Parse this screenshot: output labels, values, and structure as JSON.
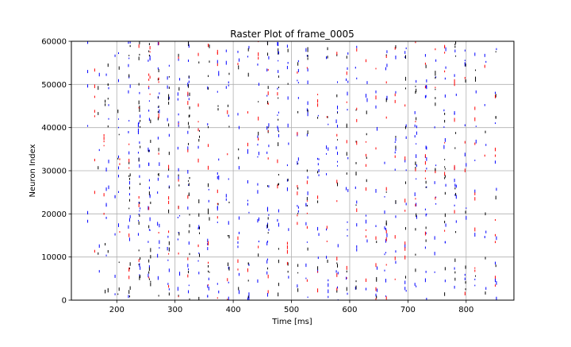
{
  "chart_data": {
    "type": "scatter",
    "style": "raster",
    "title": "Raster Plot of frame_0005",
    "xlabel": "Time [ms]",
    "ylabel": "Neuron Index",
    "xlim": [
      122,
      882
    ],
    "ylim": [
      0,
      60000
    ],
    "x_ticks": [
      200,
      300,
      400,
      500,
      600,
      700,
      800
    ],
    "y_ticks": [
      0,
      10000,
      20000,
      30000,
      40000,
      50000,
      60000
    ],
    "grid": true,
    "legend": "none",
    "series": [
      {
        "color": "#0000ff",
        "x": [
          150,
          170,
          182,
          186,
          197,
          203,
          203,
          220,
          221,
          222,
          223,
          237,
          238,
          239,
          240,
          254,
          255,
          256,
          257,
          270,
          271,
          273,
          287,
          288,
          290,
          305,
          306,
          308,
          322,
          323,
          324,
          340,
          341,
          356,
          358,
          373,
          375,
          388,
          392,
          408,
          410,
          425,
          427,
          442,
          444,
          458,
          459,
          461,
          476,
          477,
          478,
          493,
          494,
          495,
          510,
          512,
          525,
          527,
          528,
          545,
          546,
          547,
          560,
          563,
          577,
          579,
          580,
          594,
          596,
          597,
          610,
          612,
          628,
          630,
          645,
          647,
          660,
          662,
          664,
          678,
          679,
          695,
          697,
          712,
          714,
          715,
          730,
          731,
          732,
          746,
          748,
          762,
          764,
          765,
          780,
          781,
          783,
          798,
          800,
          815,
          817,
          832,
          834,
          850,
          852
        ]
      },
      {
        "color": "#000000",
        "x": [
          168,
          180,
          185,
          202,
          204,
          221,
          222,
          223,
          238,
          239,
          240,
          255,
          256,
          258,
          271,
          272,
          289,
          290,
          306,
          307,
          323,
          324,
          325,
          341,
          342,
          357,
          359,
          374,
          391,
          393,
          409,
          426,
          443,
          459,
          460,
          477,
          478,
          494,
          511,
          527,
          528,
          545,
          562,
          578,
          579,
          595,
          611,
          629,
          646,
          663,
          679,
          696,
          713,
          714,
          731,
          747,
          763,
          764,
          781,
          782,
          799,
          816,
          833,
          851
        ]
      },
      {
        "color": "#ff0000",
        "x": [
          162,
          178,
          205,
          221,
          238,
          255,
          257,
          272,
          289,
          306,
          322,
          340,
          357,
          373,
          390,
          408,
          425,
          443,
          460,
          476,
          493,
          510,
          527,
          545,
          561,
          578,
          595,
          612,
          628,
          645,
          663,
          678,
          695,
          713,
          730,
          747,
          763,
          780,
          798,
          815,
          832,
          850
        ]
      }
    ]
  }
}
